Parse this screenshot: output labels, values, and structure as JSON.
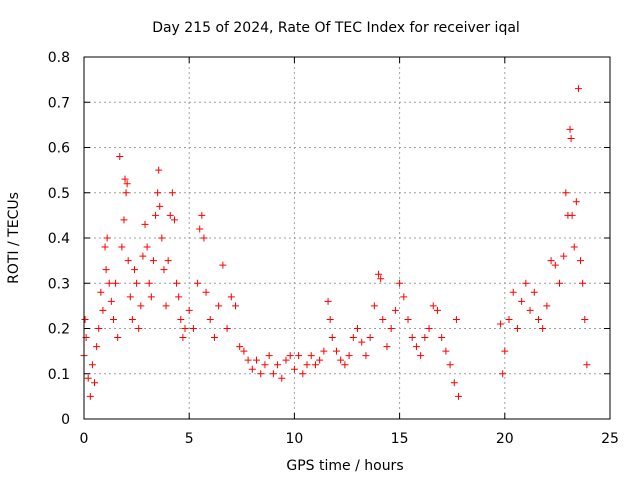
{
  "chart_data": {
    "type": "scatter",
    "title": "Day 215 of 2024, Rate Of TEC Index for receiver iqal",
    "xlabel": "GPS time / hours",
    "ylabel": "ROTI / TECUs",
    "xlim": [
      0,
      25
    ],
    "ylim": [
      0,
      0.8
    ],
    "x_ticks": [
      0,
      5,
      10,
      15,
      20,
      25
    ],
    "y_ticks": [
      0,
      0.1,
      0.2,
      0.3,
      0.4,
      0.5,
      0.6,
      0.7,
      0.8
    ],
    "x_tick_labels": [
      "0",
      "5",
      "10",
      "15",
      "20",
      "25"
    ],
    "y_tick_labels": [
      "0",
      "0.1",
      "0.2",
      "0.3",
      "0.4",
      "0.5",
      "0.6",
      "0.7",
      "0.8"
    ],
    "grid": true,
    "marker": "plus",
    "color": "#ff0000",
    "series": [
      {
        "name": "ROTI",
        "points": [
          [
            0.0,
            0.14
          ],
          [
            0.05,
            0.22
          ],
          [
            0.1,
            0.18
          ],
          [
            0.2,
            0.09
          ],
          [
            0.3,
            0.05
          ],
          [
            0.4,
            0.12
          ],
          [
            0.5,
            0.08
          ],
          [
            0.6,
            0.16
          ],
          [
            0.7,
            0.2
          ],
          [
            0.8,
            0.28
          ],
          [
            0.9,
            0.24
          ],
          [
            1.0,
            0.38
          ],
          [
            1.05,
            0.33
          ],
          [
            1.1,
            0.4
          ],
          [
            1.2,
            0.3
          ],
          [
            1.3,
            0.26
          ],
          [
            1.4,
            0.22
          ],
          [
            1.5,
            0.3
          ],
          [
            1.6,
            0.18
          ],
          [
            1.7,
            0.58
          ],
          [
            1.8,
            0.38
          ],
          [
            1.9,
            0.44
          ],
          [
            1.95,
            0.53
          ],
          [
            2.0,
            0.5
          ],
          [
            2.05,
            0.52
          ],
          [
            2.1,
            0.35
          ],
          [
            2.2,
            0.27
          ],
          [
            2.3,
            0.22
          ],
          [
            2.4,
            0.33
          ],
          [
            2.5,
            0.3
          ],
          [
            2.6,
            0.2
          ],
          [
            2.7,
            0.25
          ],
          [
            2.8,
            0.36
          ],
          [
            2.9,
            0.43
          ],
          [
            3.0,
            0.38
          ],
          [
            3.1,
            0.3
          ],
          [
            3.2,
            0.27
          ],
          [
            3.3,
            0.35
          ],
          [
            3.4,
            0.45
          ],
          [
            3.5,
            0.5
          ],
          [
            3.55,
            0.55
          ],
          [
            3.6,
            0.47
          ],
          [
            3.7,
            0.4
          ],
          [
            3.8,
            0.33
          ],
          [
            3.9,
            0.25
          ],
          [
            4.0,
            0.35
          ],
          [
            4.1,
            0.45
          ],
          [
            4.2,
            0.5
          ],
          [
            4.3,
            0.44
          ],
          [
            4.4,
            0.3
          ],
          [
            4.5,
            0.27
          ],
          [
            4.6,
            0.22
          ],
          [
            4.7,
            0.18
          ],
          [
            4.8,
            0.2
          ],
          [
            5.0,
            0.24
          ],
          [
            5.2,
            0.2
          ],
          [
            5.4,
            0.3
          ],
          [
            5.5,
            0.42
          ],
          [
            5.6,
            0.45
          ],
          [
            5.7,
            0.4
          ],
          [
            5.8,
            0.28
          ],
          [
            6.0,
            0.22
          ],
          [
            6.2,
            0.18
          ],
          [
            6.4,
            0.25
          ],
          [
            6.6,
            0.34
          ],
          [
            6.8,
            0.2
          ],
          [
            7.0,
            0.27
          ],
          [
            7.2,
            0.25
          ],
          [
            7.4,
            0.16
          ],
          [
            7.6,
            0.15
          ],
          [
            7.8,
            0.13
          ],
          [
            8.0,
            0.11
          ],
          [
            8.2,
            0.13
          ],
          [
            8.4,
            0.1
          ],
          [
            8.6,
            0.12
          ],
          [
            8.8,
            0.14
          ],
          [
            9.0,
            0.1
          ],
          [
            9.2,
            0.12
          ],
          [
            9.4,
            0.09
          ],
          [
            9.6,
            0.13
          ],
          [
            9.8,
            0.14
          ],
          [
            10.0,
            0.11
          ],
          [
            10.2,
            0.14
          ],
          [
            10.4,
            0.1
          ],
          [
            10.6,
            0.12
          ],
          [
            10.8,
            0.14
          ],
          [
            11.0,
            0.12
          ],
          [
            11.2,
            0.13
          ],
          [
            11.4,
            0.15
          ],
          [
            11.6,
            0.26
          ],
          [
            11.7,
            0.22
          ],
          [
            11.8,
            0.18
          ],
          [
            12.0,
            0.15
          ],
          [
            12.2,
            0.13
          ],
          [
            12.4,
            0.12
          ],
          [
            12.6,
            0.14
          ],
          [
            12.8,
            0.18
          ],
          [
            13.0,
            0.2
          ],
          [
            13.2,
            0.17
          ],
          [
            13.4,
            0.14
          ],
          [
            13.6,
            0.18
          ],
          [
            13.8,
            0.25
          ],
          [
            14.0,
            0.32
          ],
          [
            14.1,
            0.31
          ],
          [
            14.2,
            0.22
          ],
          [
            14.4,
            0.16
          ],
          [
            14.6,
            0.2
          ],
          [
            14.8,
            0.24
          ],
          [
            15.0,
            0.3
          ],
          [
            15.2,
            0.27
          ],
          [
            15.4,
            0.22
          ],
          [
            15.6,
            0.18
          ],
          [
            15.8,
            0.16
          ],
          [
            16.0,
            0.14
          ],
          [
            16.2,
            0.18
          ],
          [
            16.4,
            0.2
          ],
          [
            16.6,
            0.25
          ],
          [
            16.8,
            0.24
          ],
          [
            17.0,
            0.18
          ],
          [
            17.2,
            0.15
          ],
          [
            17.4,
            0.12
          ],
          [
            17.6,
            0.08
          ],
          [
            17.7,
            0.22
          ],
          [
            17.8,
            0.05
          ],
          [
            19.8,
            0.21
          ],
          [
            19.9,
            0.1
          ],
          [
            20.0,
            0.15
          ],
          [
            20.2,
            0.22
          ],
          [
            20.4,
            0.28
          ],
          [
            20.6,
            0.2
          ],
          [
            20.8,
            0.26
          ],
          [
            21.0,
            0.3
          ],
          [
            21.2,
            0.24
          ],
          [
            21.4,
            0.28
          ],
          [
            21.6,
            0.22
          ],
          [
            21.8,
            0.2
          ],
          [
            22.0,
            0.25
          ],
          [
            22.2,
            0.35
          ],
          [
            22.4,
            0.34
          ],
          [
            22.6,
            0.3
          ],
          [
            22.8,
            0.36
          ],
          [
            22.9,
            0.5
          ],
          [
            23.0,
            0.45
          ],
          [
            23.1,
            0.64
          ],
          [
            23.15,
            0.62
          ],
          [
            23.2,
            0.45
          ],
          [
            23.3,
            0.38
          ],
          [
            23.4,
            0.48
          ],
          [
            23.5,
            0.73
          ],
          [
            23.6,
            0.35
          ],
          [
            23.7,
            0.3
          ],
          [
            23.8,
            0.22
          ],
          [
            23.9,
            0.12
          ]
        ]
      }
    ]
  }
}
